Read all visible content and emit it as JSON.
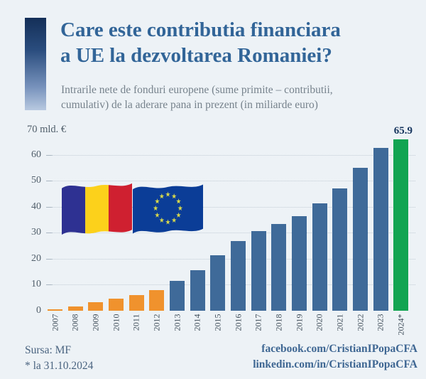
{
  "header": {
    "title_lines": [
      "Care este contributia financiara",
      "a UE la dezvoltarea Romaniei?"
    ],
    "subtitle_lines": [
      "Intrarile nete de fonduri europene (sume primite – contributii,",
      "cumulativ) de la aderare pana in prezent (in miliarde euro)"
    ]
  },
  "chart_data": {
    "type": "bar",
    "title": "Care este contributia financiara a UE la dezvoltarea Romaniei?",
    "subtitle": "Intrarile nete de fonduri europene (sume primite - contributii, cumulativ) de la aderare pana in prezent (in miliarde euro)",
    "categories": [
      "2007",
      "2008",
      "2009",
      "2010",
      "2011",
      "2012",
      "2013",
      "2014",
      "2015",
      "2016",
      "2017",
      "2018",
      "2019",
      "2020",
      "2021",
      "2022",
      "2023",
      "2024*"
    ],
    "values": [
      0.6,
      1.7,
      3.3,
      4.7,
      6.0,
      8.0,
      11.5,
      15.7,
      21.3,
      26.8,
      30.5,
      33.4,
      36.5,
      41.2,
      47.0,
      54.9,
      62.7,
      65.9
    ],
    "bar_series": [
      "early",
      "early",
      "early",
      "early",
      "early",
      "early",
      "mid",
      "mid",
      "mid",
      "mid",
      "mid",
      "mid",
      "mid",
      "mid",
      "mid",
      "mid",
      "mid",
      "latest"
    ],
    "series_colors": {
      "early": "#f0922d",
      "mid": "#3f6a99",
      "latest": "#12a452"
    },
    "annotated_bar": {
      "category": "2024*",
      "label": "65.9"
    },
    "ylabel_top": "70 mld. €",
    "ylim": [
      0,
      70
    ],
    "yticks": [
      0,
      10,
      20,
      30,
      40,
      50,
      60
    ],
    "grid": "horizontal-dotted",
    "legend": "none"
  },
  "icons": {
    "romania_flag": "romania-flag",
    "eu_flag": "eu-flag"
  },
  "colors": {
    "background": "#edf2f6",
    "accent_gradient_top": "#142f58",
    "accent_gradient_bottom": "#b8c9e0",
    "title": "#326598",
    "subtitle": "#76828c",
    "axis_labels": "#515f6b",
    "year_labels": "#3f4d59",
    "gridline": "#c3cdd6",
    "bar_orange": "#f0922d",
    "bar_blue": "#3f6a99",
    "bar_green": "#12a452",
    "annotation": "#16355e",
    "footer_text": "#4a6480",
    "links": "#3f6793"
  },
  "footer": {
    "source": "Sursa: MF",
    "note": "* la 31.10.2024",
    "links": [
      "facebook.com/CristianIPopaCFA",
      "linkedin.com/in/CristianIPopaCFA"
    ]
  }
}
